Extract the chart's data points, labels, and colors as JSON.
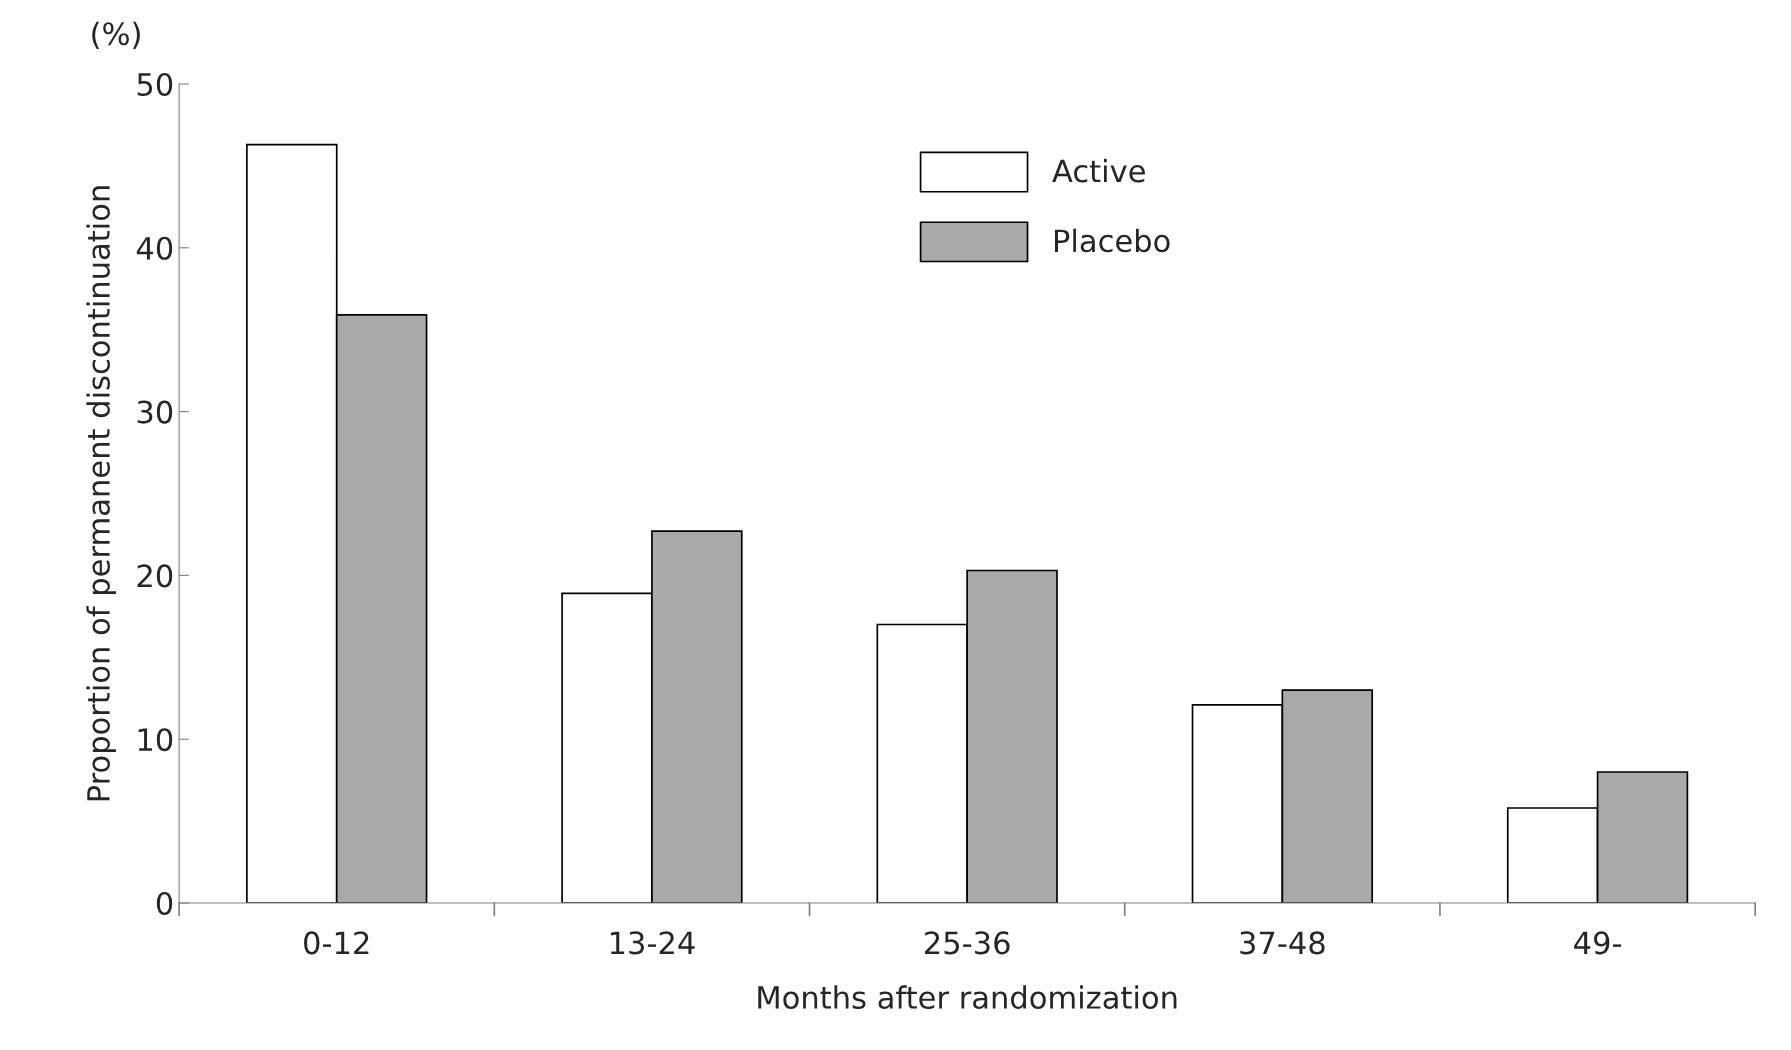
{
  "chart_data": {
    "type": "bar",
    "xlabel": "Months after randomization",
    "ylabel": "Proportion of permanent discontinuation",
    "annotations": [
      "(%)"
    ],
    "categories": [
      "0-12",
      "13-24",
      "25-36",
      "37-48",
      "49-"
    ],
    "series": [
      {
        "name": "Active",
        "color": "#ffffff",
        "values": [
          46.3,
          18.9,
          17.0,
          12.1,
          5.8
        ]
      },
      {
        "name": "Placebo",
        "color": "#a9a9a9",
        "values": [
          35.9,
          22.7,
          20.3,
          13.0,
          8.0
        ]
      }
    ],
    "ylim": [
      0,
      50
    ],
    "yticks": [
      0,
      10,
      20,
      30,
      40,
      50
    ],
    "grid": false,
    "legend": "top"
  }
}
